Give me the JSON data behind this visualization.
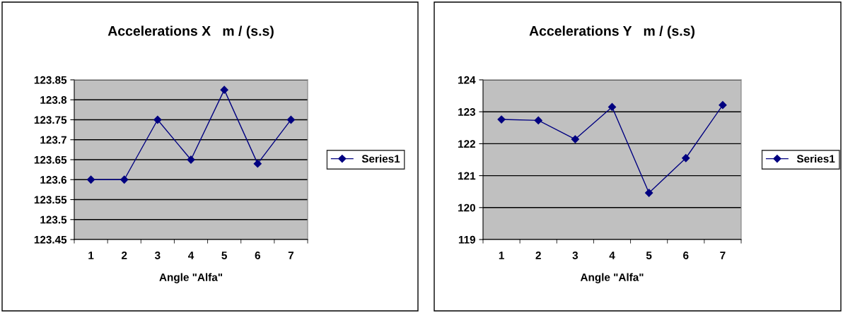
{
  "chart_data": [
    {
      "type": "line",
      "title": "Accelerations X   m / (s.s)",
      "xlabel": "Angle \"Alfa\"",
      "categories": [
        "1",
        "2",
        "3",
        "4",
        "5",
        "6",
        "7"
      ],
      "series": [
        {
          "name": "Series1",
          "color": "#000080",
          "values": [
            123.6,
            123.6,
            123.75,
            123.65,
            123.825,
            123.64,
            123.75
          ]
        }
      ],
      "ylim": [
        123.45,
        123.85
      ],
      "yticks": [
        {
          "value": 123.45,
          "label": "123.45"
        },
        {
          "value": 123.5,
          "label": "123.5"
        },
        {
          "value": 123.55,
          "label": "123.55"
        },
        {
          "value": 123.6,
          "label": "123.6"
        },
        {
          "value": 123.65,
          "label": "123.65"
        },
        {
          "value": 123.7,
          "label": "123.7"
        },
        {
          "value": 123.75,
          "label": "123.75"
        },
        {
          "value": 123.8,
          "label": "123.8"
        },
        {
          "value": 123.85,
          "label": "123.85"
        }
      ],
      "grid": "y",
      "legend": "right",
      "marker": "diamond",
      "line_style": "solid"
    },
    {
      "type": "line",
      "title": "Accelerations Y   m / (s.s)",
      "xlabel": "Angle \"Alfa\"",
      "categories": [
        "1",
        "2",
        "3",
        "4",
        "5",
        "6",
        "7"
      ],
      "series": [
        {
          "name": "Series1",
          "color": "#000080",
          "values": [
            122.76,
            122.73,
            122.14,
            123.15,
            120.46,
            121.55,
            123.21
          ]
        }
      ],
      "ylim": [
        119,
        124
      ],
      "yticks": [
        119,
        120,
        121,
        122,
        123,
        124
      ],
      "grid": "y",
      "legend": "right",
      "marker": "diamond",
      "line_style": "solid"
    }
  ]
}
